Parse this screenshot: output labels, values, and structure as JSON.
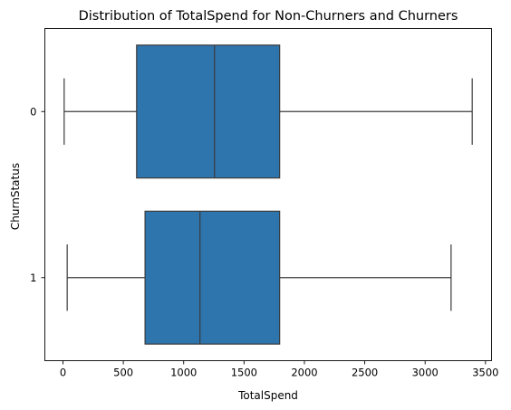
{
  "chart_data": {
    "type": "box",
    "orientation": "horizontal",
    "title": "Distribution of TotalSpend for Non-Churners and Churners",
    "xlabel": "TotalSpend",
    "ylabel": "ChurnStatus",
    "xlim": [
      -150,
      3550
    ],
    "xticks": [
      0,
      500,
      1000,
      1500,
      2000,
      2500,
      3000,
      3500
    ],
    "xtick_labels": [
      "0",
      "500",
      "1000",
      "1500",
      "2000",
      "2500",
      "3000",
      "3500"
    ],
    "categories": [
      "0",
      "1"
    ],
    "boxes": [
      {
        "category": "0",
        "whislo": 10,
        "q1": 610,
        "med": 1255,
        "q3": 1795,
        "whishi": 3390
      },
      {
        "category": "1",
        "whislo": 35,
        "q1": 680,
        "med": 1135,
        "q3": 1795,
        "whishi": 3215
      }
    ],
    "grid": false,
    "legend": "none",
    "colors": {
      "box_fill": "#2e74ad",
      "line": "#3b3b3b"
    }
  }
}
